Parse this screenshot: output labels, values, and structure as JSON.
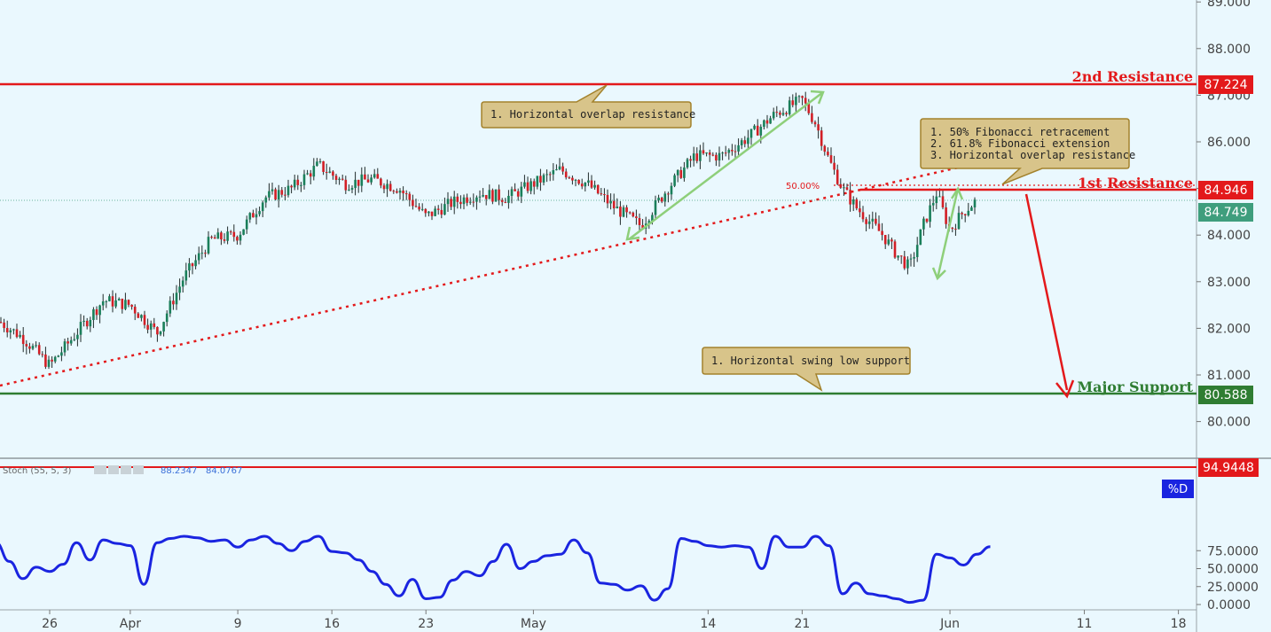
{
  "window": {
    "minimize_glyph": "−",
    "logo_glyph": "◣"
  },
  "colors": {
    "background": "#eaf8fe",
    "candle_up": "#1a7f5a",
    "candle_down": "#d21f26",
    "resistance": "#e3191b",
    "support": "#2f7d32",
    "stoch_line": "#1a24e0",
    "arrow_green": "#8ecf7a",
    "note_fill": "#d8c48a",
    "note_border": "#a3822c",
    "last_price": "#3f9e7d",
    "axis_text": "#444444"
  },
  "chart_data": [
    {
      "type": "candlestick",
      "title": "",
      "x_ticks": [
        "26",
        "Apr",
        "9",
        "16",
        "23",
        "May",
        "14",
        "21",
        "Jun",
        "11",
        "18"
      ],
      "y_ticks": [
        "80.000",
        "81.000",
        "82.000",
        "83.000",
        "84.000",
        "85.000",
        "86.000",
        "87.000",
        "88.000",
        "89.000"
      ],
      "ylim": [
        79.3,
        89.1
      ],
      "grid": false,
      "last_price": 84.749,
      "price_trace": [
        [
          "2018-03-22",
          82.2
        ],
        [
          "2018-03-24",
          81.8
        ],
        [
          "2018-03-26",
          81.2
        ],
        [
          "2018-03-28",
          81.9
        ],
        [
          "2018-03-30",
          82.6
        ],
        [
          "2018-04-01",
          82.5
        ],
        [
          "2018-04-03",
          81.9
        ],
        [
          "2018-04-05",
          83.1
        ],
        [
          "2018-04-07",
          83.9
        ],
        [
          "2018-04-09",
          84.0
        ],
        [
          "2018-04-11",
          84.8
        ],
        [
          "2018-04-13",
          85.0
        ],
        [
          "2018-04-15",
          85.5
        ],
        [
          "2018-04-17",
          85.1
        ],
        [
          "2018-04-19",
          85.2
        ],
        [
          "2018-04-21",
          85.0
        ],
        [
          "2018-04-23",
          84.4
        ],
        [
          "2018-04-25",
          84.7
        ],
        [
          "2018-04-27",
          84.9
        ],
        [
          "2018-04-29",
          84.8
        ],
        [
          "2018-05-01",
          85.1
        ],
        [
          "2018-05-03",
          85.4
        ],
        [
          "2018-05-05",
          85.1
        ],
        [
          "2018-05-07",
          84.6
        ],
        [
          "2018-05-09",
          84.2
        ],
        [
          "2018-05-11",
          85.0
        ],
        [
          "2018-05-13",
          85.7
        ],
        [
          "2018-05-15",
          85.7
        ],
        [
          "2018-05-17",
          86.1
        ],
        [
          "2018-05-19",
          86.6
        ],
        [
          "2018-05-21",
          86.9
        ],
        [
          "2018-05-22",
          86.4
        ],
        [
          "2018-05-23",
          85.6
        ],
        [
          "2018-05-24",
          85.0
        ],
        [
          "2018-05-25",
          84.6
        ],
        [
          "2018-05-26",
          84.3
        ],
        [
          "2018-05-27",
          84.0
        ],
        [
          "2018-05-28",
          83.6
        ],
        [
          "2018-05-29",
          83.3
        ],
        [
          "2018-05-30",
          84.2
        ],
        [
          "2018-05-31",
          84.9
        ],
        [
          "2018-06-01",
          84.1
        ],
        [
          "2018-06-02",
          84.5
        ],
        [
          "2018-06-03",
          84.749
        ]
      ],
      "levels": [
        {
          "label": "2nd Resistance",
          "value": 87.224
        },
        {
          "label": "1st Resistance",
          "value": 84.946
        },
        {
          "label": "Major Support",
          "value": 80.588
        }
      ],
      "fibonacci_label": "50.00%",
      "annotations": [
        "1. Horizontal overlap resistance",
        "1. 50% Fibonacci retracement",
        "2. 61.8% Fibonacci extension",
        "3. Horizontal overlap resistance",
        "1. Horizontal swing low support"
      ],
      "projection": {
        "from": [
          "2018-06-04",
          84.946
        ],
        "to": [
          "2018-06-08",
          80.588
        ]
      }
    },
    {
      "type": "line",
      "title": "Stoch (55, 5, 3)",
      "legend_values": [
        "88.2347",
        "84.0767"
      ],
      "series": [
        {
          "name": "%D"
        }
      ],
      "ylim": [
        0,
        100
      ],
      "y_ticks": [
        "0.0000",
        "25.0000",
        "50.0000",
        "75.0000"
      ],
      "level": 94.9448,
      "last_value": 80.5,
      "trace": [
        [
          "2018-03-21",
          78
        ],
        [
          "2018-03-22",
          86
        ],
        [
          "2018-03-23",
          60
        ],
        [
          "2018-03-24",
          36
        ],
        [
          "2018-03-25",
          52
        ],
        [
          "2018-03-26",
          46
        ],
        [
          "2018-03-27",
          56
        ],
        [
          "2018-03-28",
          86
        ],
        [
          "2018-03-29",
          62
        ],
        [
          "2018-03-30",
          90
        ],
        [
          "2018-03-31",
          85
        ],
        [
          "2018-04-01",
          82
        ],
        [
          "2018-04-02",
          28
        ],
        [
          "2018-04-03",
          86
        ],
        [
          "2018-04-04",
          92
        ],
        [
          "2018-04-05",
          95
        ],
        [
          "2018-04-06",
          93
        ],
        [
          "2018-04-07",
          88
        ],
        [
          "2018-04-08",
          90
        ],
        [
          "2018-04-09",
          80
        ],
        [
          "2018-04-10",
          90
        ],
        [
          "2018-04-11",
          95
        ],
        [
          "2018-04-12",
          85
        ],
        [
          "2018-04-13",
          75
        ],
        [
          "2018-04-14",
          88
        ],
        [
          "2018-04-15",
          95
        ],
        [
          "2018-04-16",
          74
        ],
        [
          "2018-04-17",
          72
        ],
        [
          "2018-04-18",
          62
        ],
        [
          "2018-04-19",
          46
        ],
        [
          "2018-04-20",
          28
        ],
        [
          "2018-04-21",
          12
        ],
        [
          "2018-04-22",
          35
        ],
        [
          "2018-04-23",
          8
        ],
        [
          "2018-04-24",
          10
        ],
        [
          "2018-04-25",
          34
        ],
        [
          "2018-04-26",
          46
        ],
        [
          "2018-04-27",
          40
        ],
        [
          "2018-04-28",
          60
        ],
        [
          "2018-04-29",
          84
        ],
        [
          "2018-04-30",
          50
        ],
        [
          "2018-05-01",
          60
        ],
        [
          "2018-05-02",
          68
        ],
        [
          "2018-05-03",
          70
        ],
        [
          "2018-05-04",
          90
        ],
        [
          "2018-05-05",
          72
        ],
        [
          "2018-05-06",
          30
        ],
        [
          "2018-05-07",
          28
        ],
        [
          "2018-05-08",
          20
        ],
        [
          "2018-05-09",
          26
        ],
        [
          "2018-05-10",
          6
        ],
        [
          "2018-05-11",
          22
        ],
        [
          "2018-05-12",
          92
        ],
        [
          "2018-05-13",
          88
        ],
        [
          "2018-05-14",
          82
        ],
        [
          "2018-05-15",
          80
        ],
        [
          "2018-05-16",
          82
        ],
        [
          "2018-05-17",
          80
        ],
        [
          "2018-05-18",
          50
        ],
        [
          "2018-05-19",
          95
        ],
        [
          "2018-05-20",
          80
        ],
        [
          "2018-05-21",
          80
        ],
        [
          "2018-05-22",
          95
        ],
        [
          "2018-05-23",
          82
        ],
        [
          "2018-05-24",
          15
        ],
        [
          "2018-05-25",
          30
        ],
        [
          "2018-05-26",
          15
        ],
        [
          "2018-05-27",
          12
        ],
        [
          "2018-05-28",
          8
        ],
        [
          "2018-05-29",
          3
        ],
        [
          "2018-05-30",
          6
        ],
        [
          "2018-05-31",
          70
        ],
        [
          "2018-06-01",
          65
        ],
        [
          "2018-06-02",
          55
        ],
        [
          "2018-06-03",
          70
        ],
        [
          "2018-06-04",
          80.5
        ]
      ]
    }
  ]
}
